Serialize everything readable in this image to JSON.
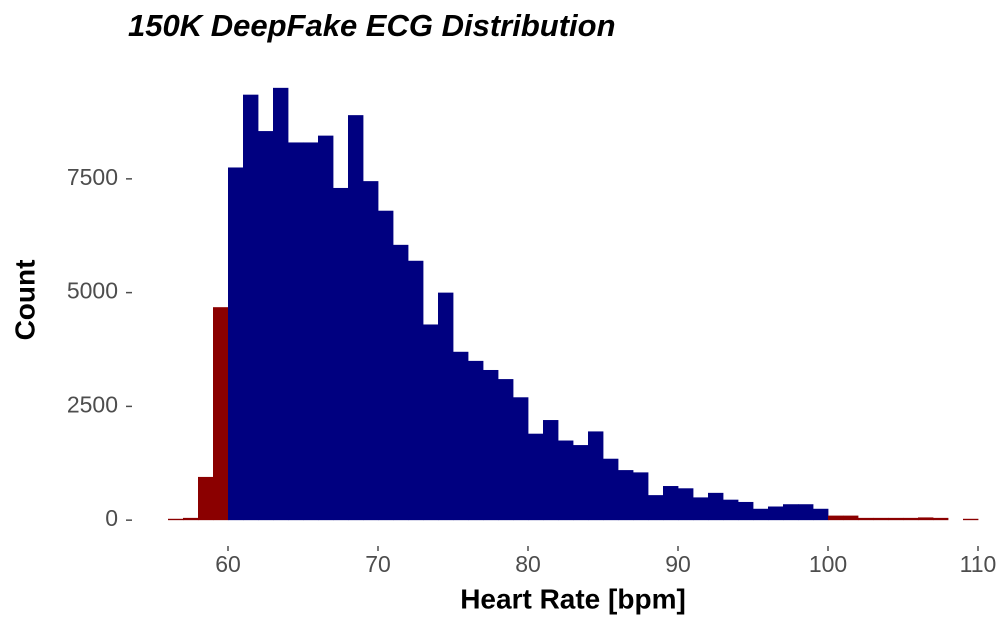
{
  "chart_data": {
    "type": "histogram",
    "title": "150K DeepFake ECG Distribution",
    "x_label": "Heart Rate [bpm]",
    "y_label": "Count",
    "bins": [
      56,
      57,
      58,
      59,
      60,
      61,
      62,
      63,
      64,
      65,
      66,
      67,
      68,
      69,
      70,
      71,
      72,
      73,
      74,
      75,
      76,
      77,
      78,
      79,
      80,
      81,
      82,
      83,
      84,
      85,
      86,
      87,
      88,
      89,
      90,
      91,
      92,
      93,
      94,
      95,
      96,
      97,
      98,
      99,
      100,
      101,
      102,
      103,
      104,
      105,
      106,
      107,
      108,
      109,
      110
    ],
    "counts": [
      30,
      50,
      950,
      4680,
      7750,
      9350,
      8550,
      9500,
      8300,
      8300,
      8450,
      7300,
      8900,
      7450,
      6800,
      6050,
      5700,
      4300,
      5000,
      3700,
      3500,
      3300,
      3100,
      2700,
      1900,
      2200,
      1750,
      1650,
      1950,
      1350,
      1100,
      1050,
      550,
      750,
      700,
      500,
      600,
      450,
      400,
      250,
      300,
      350,
      350,
      250,
      100,
      100,
      50,
      50,
      50,
      50,
      60,
      50,
      0,
      30
    ],
    "colors": [
      "#8b0000",
      "#8b0000",
      "#8b0000",
      "#8b0000",
      "#000080",
      "#000080",
      "#000080",
      "#000080",
      "#000080",
      "#000080",
      "#000080",
      "#000080",
      "#000080",
      "#000080",
      "#000080",
      "#000080",
      "#000080",
      "#000080",
      "#000080",
      "#000080",
      "#000080",
      "#000080",
      "#000080",
      "#000080",
      "#000080",
      "#000080",
      "#000080",
      "#000080",
      "#000080",
      "#000080",
      "#000080",
      "#000080",
      "#000080",
      "#000080",
      "#000080",
      "#000080",
      "#000080",
      "#000080",
      "#000080",
      "#000080",
      "#000080",
      "#000080",
      "#000080",
      "#000080",
      "#8b0000",
      "#8b0000",
      "#8b0000",
      "#8b0000",
      "#8b0000",
      "#8b0000",
      "#8b0000",
      "#8b0000",
      "#8b0000",
      "#8b0000"
    ],
    "xlim": [
      54,
      111.9
    ],
    "ylim": [
      -480,
      9980
    ],
    "xticks": [
      60,
      70,
      80,
      90,
      100,
      110
    ],
    "yticks": [
      0,
      2500,
      5000,
      7500
    ],
    "grid": false
  }
}
